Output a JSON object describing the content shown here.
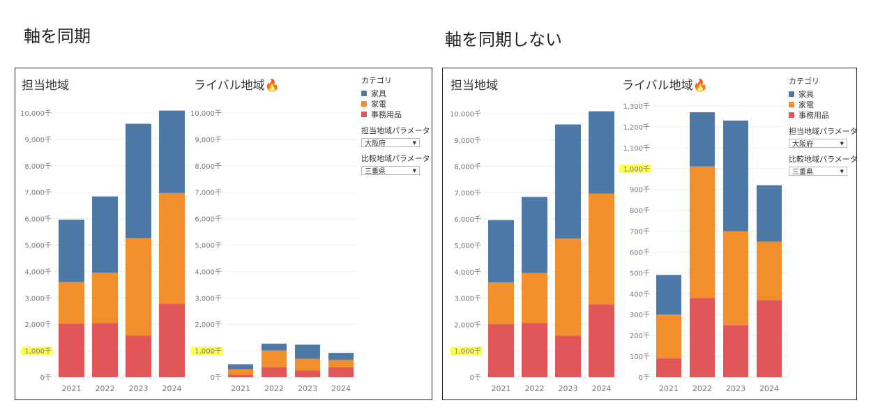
{
  "headings": {
    "left": "軸を同期",
    "right": "軸を同期しない"
  },
  "colors": {
    "furniture": "#4e79a7",
    "appliance": "#f28e2b",
    "office": "#e15759",
    "highlight": "#ffff33",
    "grid": "#eeeeee",
    "axis_text": "#777777"
  },
  "legend": {
    "title": "カテゴリ",
    "items": [
      {
        "label": "家具",
        "color": "#4e79a7"
      },
      {
        "label": "家電",
        "color": "#f28e2b"
      },
      {
        "label": "事務用品",
        "color": "#e15759"
      }
    ],
    "param1_label": "担当地域パラメータ",
    "param1_value": "大阪府",
    "param2_label": "比較地域パラメータ",
    "param2_value": "三重県"
  },
  "chart_data": [
    {
      "type": "bar",
      "stacked": true,
      "title": "担当地域",
      "categories": [
        "2021",
        "2022",
        "2023",
        "2024"
      ],
      "series": [
        {
          "name": "事務用品",
          "color": "#e15759",
          "values": [
            2020,
            2050,
            1580,
            2770
          ]
        },
        {
          "name": "家電",
          "color": "#f28e2b",
          "values": [
            1580,
            1900,
            3680,
            4200
          ]
        },
        {
          "name": "家具",
          "color": "#4e79a7",
          "values": [
            2360,
            2890,
            4330,
            3120
          ]
        }
      ],
      "ylim": [
        0,
        10000
      ],
      "yticks": [
        "0千",
        "1,000千",
        "2,000千",
        "3,000千",
        "4,000千",
        "5,000千",
        "6,000千",
        "7,000千",
        "8,000千",
        "9,000千",
        "10,000千"
      ],
      "highlight_tick": "1,000千"
    },
    {
      "type": "bar",
      "stacked": true,
      "title": "ライバル地域🔥",
      "categories": [
        "2021",
        "2022",
        "2023",
        "2024"
      ],
      "series": [
        {
          "name": "事務用品",
          "color": "#e15759",
          "values": [
            90,
            380,
            250,
            370
          ]
        },
        {
          "name": "家電",
          "color": "#f28e2b",
          "values": [
            210,
            630,
            450,
            280
          ]
        },
        {
          "name": "家具",
          "color": "#4e79a7",
          "values": [
            190,
            260,
            530,
            270
          ]
        }
      ],
      "ylim": [
        0,
        10000
      ],
      "yticks": [
        "0千",
        "1,000千",
        "2,000千",
        "3,000千",
        "4,000千",
        "5,000千",
        "6,000千",
        "7,000千",
        "8,000千",
        "9,000千",
        "10,000千"
      ],
      "highlight_tick": "1,000千"
    },
    {
      "type": "bar",
      "stacked": true,
      "title": "担当地域",
      "categories": [
        "2021",
        "2022",
        "2023",
        "2024"
      ],
      "series": [
        {
          "name": "事務用品",
          "color": "#e15759",
          "values": [
            2020,
            2050,
            1580,
            2770
          ]
        },
        {
          "name": "家電",
          "color": "#f28e2b",
          "values": [
            1580,
            1900,
            3680,
            4200
          ]
        },
        {
          "name": "家具",
          "color": "#4e79a7",
          "values": [
            2360,
            2890,
            4330,
            3120
          ]
        }
      ],
      "ylim": [
        0,
        10000
      ],
      "yticks": [
        "0千",
        "1,000千",
        "2,000千",
        "3,000千",
        "4,000千",
        "5,000千",
        "6,000千",
        "7,000千",
        "8,000千",
        "9,000千",
        "10,000千"
      ],
      "highlight_tick": "1,000千"
    },
    {
      "type": "bar",
      "stacked": true,
      "title": "ライバル地域🔥",
      "categories": [
        "2021",
        "2022",
        "2023",
        "2024"
      ],
      "series": [
        {
          "name": "事務用品",
          "color": "#e15759",
          "values": [
            90,
            380,
            250,
            370
          ]
        },
        {
          "name": "家電",
          "color": "#f28e2b",
          "values": [
            210,
            630,
            450,
            280
          ]
        },
        {
          "name": "家具",
          "color": "#4e79a7",
          "values": [
            190,
            260,
            530,
            270
          ]
        }
      ],
      "ylim": [
        0,
        1300
      ],
      "yticks": [
        "0千",
        "100千",
        "200千",
        "300千",
        "400千",
        "500千",
        "600千",
        "700千",
        "800千",
        "900千",
        "1,000千",
        "1,100千",
        "1,200千",
        "1,300千"
      ],
      "highlight_tick": "1,000千"
    }
  ]
}
